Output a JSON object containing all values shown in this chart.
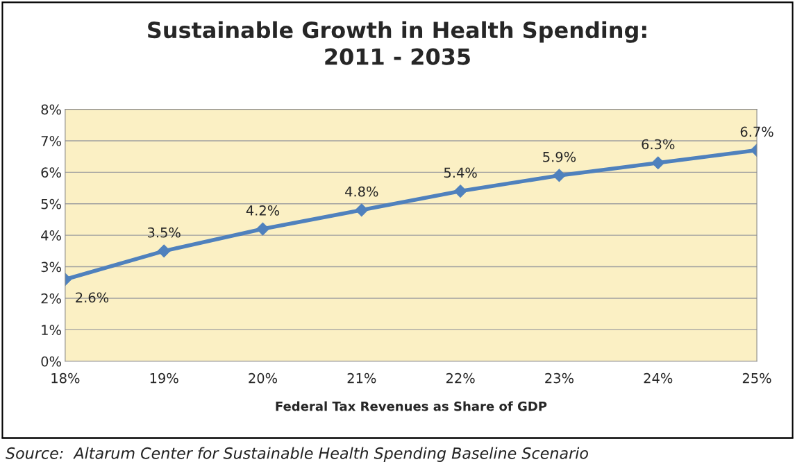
{
  "chart_data": {
    "type": "line",
    "title": "Sustainable Growth in Health Spending:\n2011 - 2035",
    "xlabel": "Federal Tax Revenues as Share of GDP",
    "x": [
      18,
      19,
      20,
      21,
      22,
      23,
      24,
      25
    ],
    "series": [
      {
        "color": "#4f81bd",
        "values": [
          2.6,
          3.5,
          4.2,
          4.8,
          5.4,
          5.9,
          6.3,
          6.7
        ],
        "value_labels": [
          "2.6%",
          "3.5%",
          "4.2%",
          "4.8%",
          "5.4%",
          "5.9%",
          "6.3%",
          "6.7%"
        ]
      }
    ],
    "xlim": [
      18,
      25
    ],
    "xticks": [
      {
        "value": 18,
        "label": "18%"
      },
      {
        "value": 19,
        "label": "19%"
      },
      {
        "value": 20,
        "label": "20%"
      },
      {
        "value": 21,
        "label": "21%"
      },
      {
        "value": 22,
        "label": "22%"
      },
      {
        "value": 23,
        "label": "23%"
      },
      {
        "value": 24,
        "label": "24%"
      },
      {
        "value": 25,
        "label": "25%"
      }
    ],
    "ylim": [
      0,
      8
    ],
    "yticks": [
      {
        "value": 0,
        "label": "0%"
      },
      {
        "value": 1,
        "label": "1%"
      },
      {
        "value": 2,
        "label": "2%"
      },
      {
        "value": 3,
        "label": "3%"
      },
      {
        "value": 4,
        "label": "4%"
      },
      {
        "value": 5,
        "label": "5%"
      },
      {
        "value": 6,
        "label": "6%"
      },
      {
        "value": 7,
        "label": "7%"
      },
      {
        "value": 8,
        "label": "8%"
      }
    ],
    "grid": "y",
    "marker": "diamond",
    "line_style": "solid",
    "annotations": [
      "Source:  Altarum Center for Sustainable Health Spending Baseline Scenario"
    ]
  }
}
